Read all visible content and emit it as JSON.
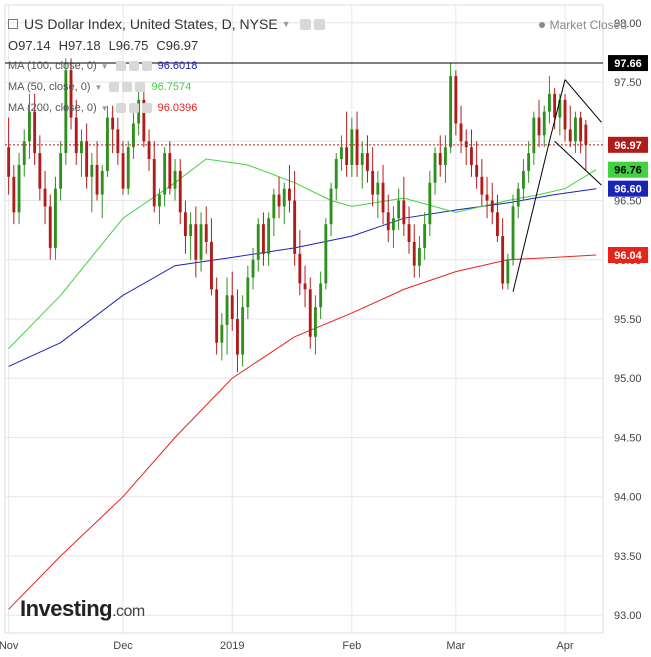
{
  "header": {
    "title": "US Dollar Index, United States, D, NYSE",
    "ohlc": {
      "open": "O97.14",
      "high": "H97.18",
      "low": "L96.75",
      "close": "C96.97"
    },
    "market_status": "Market Closed",
    "ma_lines": [
      {
        "label": "MA (100, close, 0)",
        "value": "96.6018",
        "color": "#1a23b8"
      },
      {
        "label": "MA (50, close, 0)",
        "value": "96.7574",
        "color": "#3fd33f"
      },
      {
        "label": "MA (200, close, 0)",
        "value": "96.0396",
        "color": "#e8231c"
      }
    ]
  },
  "logo": {
    "brand": "Investing",
    "domain": ".com"
  },
  "colors": {
    "up": "#2f8f1f",
    "down": "#b31b1b",
    "ma100": "#1a23b8",
    "ma50": "#3fd33f",
    "ma200": "#e8231c",
    "grid": "#e6e6e6"
  },
  "chart_data": {
    "type": "candlestick",
    "title": "US Dollar Index, United States, D, NYSE",
    "ylim": [
      92.85,
      98.15
    ],
    "y_ticks": [
      "93.00",
      "93.50",
      "94.00",
      "94.50",
      "95.00",
      "95.50",
      "96.00",
      "96.50",
      "97.00",
      "97.50",
      "98.00"
    ],
    "x_ticks": [
      {
        "label": "Nov",
        "x": 0
      },
      {
        "label": "Dec",
        "x": 22
      },
      {
        "label": "2019",
        "x": 43
      },
      {
        "label": "Feb",
        "x": 66
      },
      {
        "label": "Mar",
        "x": 86
      },
      {
        "label": "Apr",
        "x": 107
      }
    ],
    "candles": [
      [
        96.95,
        97.2,
        96.55,
        96.7
      ],
      [
        96.7,
        96.8,
        96.3,
        96.4
      ],
      [
        96.4,
        96.9,
        96.3,
        96.8
      ],
      [
        96.8,
        97.1,
        96.7,
        97.0
      ],
      [
        97.0,
        97.4,
        96.85,
        97.25
      ],
      [
        97.25,
        97.4,
        96.8,
        96.9
      ],
      [
        96.9,
        97.05,
        96.5,
        96.6
      ],
      [
        96.6,
        96.75,
        96.3,
        96.45
      ],
      [
        96.45,
        96.55,
        96.0,
        96.1
      ],
      [
        96.1,
        96.7,
        96.0,
        96.6
      ],
      [
        96.6,
        97.0,
        96.5,
        96.9
      ],
      [
        96.9,
        97.7,
        96.8,
        97.6
      ],
      [
        97.6,
        97.7,
        97.1,
        97.2
      ],
      [
        97.2,
        97.35,
        96.8,
        96.9
      ],
      [
        96.9,
        97.1,
        96.7,
        97.0
      ],
      [
        97.0,
        97.15,
        96.6,
        96.7
      ],
      [
        96.7,
        96.9,
        96.4,
        96.8
      ],
      [
        96.8,
        97.0,
        96.5,
        96.55
      ],
      [
        96.55,
        96.8,
        96.35,
        96.75
      ],
      [
        96.75,
        97.3,
        96.7,
        97.2
      ],
      [
        97.2,
        97.3,
        96.9,
        97.1
      ],
      [
        97.1,
        97.2,
        96.8,
        96.9
      ],
      [
        96.9,
        97.0,
        96.55,
        96.6
      ],
      [
        96.6,
        97.0,
        96.55,
        96.95
      ],
      [
        96.95,
        97.25,
        96.85,
        97.15
      ],
      [
        97.15,
        97.45,
        97.05,
        97.35
      ],
      [
        97.35,
        97.45,
        96.95,
        97.0
      ],
      [
        97.0,
        97.1,
        96.75,
        96.85
      ],
      [
        96.85,
        97.0,
        96.4,
        96.45
      ],
      [
        96.45,
        96.6,
        96.3,
        96.55
      ],
      [
        96.55,
        96.95,
        96.45,
        96.9
      ],
      [
        96.9,
        97.0,
        96.55,
        96.6
      ],
      [
        96.6,
        96.85,
        96.5,
        96.75
      ],
      [
        96.75,
        96.85,
        96.3,
        96.4
      ],
      [
        96.4,
        96.5,
        96.05,
        96.2
      ],
      [
        96.2,
        96.4,
        96.0,
        96.3
      ],
      [
        96.3,
        96.45,
        95.85,
        96.0
      ],
      [
        96.0,
        96.4,
        95.9,
        96.3
      ],
      [
        96.3,
        96.45,
        96.05,
        96.15
      ],
      [
        96.15,
        96.35,
        95.7,
        95.75
      ],
      [
        95.75,
        95.85,
        95.2,
        95.3
      ],
      [
        95.3,
        95.55,
        95.15,
        95.45
      ],
      [
        95.45,
        95.85,
        95.2,
        95.7
      ],
      [
        95.7,
        95.9,
        95.4,
        95.5
      ],
      [
        95.5,
        95.75,
        95.05,
        95.2
      ],
      [
        95.2,
        95.7,
        95.1,
        95.6
      ],
      [
        95.6,
        95.95,
        95.5,
        95.85
      ],
      [
        95.85,
        96.1,
        95.75,
        96.0
      ],
      [
        96.0,
        96.35,
        95.9,
        96.3
      ],
      [
        96.3,
        96.4,
        95.95,
        96.05
      ],
      [
        96.05,
        96.4,
        95.95,
        96.35
      ],
      [
        96.35,
        96.6,
        96.2,
        96.55
      ],
      [
        96.55,
        96.7,
        96.35,
        96.45
      ],
      [
        96.45,
        96.65,
        96.3,
        96.6
      ],
      [
        96.6,
        96.8,
        96.4,
        96.5
      ],
      [
        96.5,
        96.75,
        95.95,
        96.05
      ],
      [
        96.05,
        96.25,
        95.7,
        95.8
      ],
      [
        95.8,
        95.95,
        95.6,
        95.75
      ],
      [
        95.75,
        95.85,
        95.25,
        95.35
      ],
      [
        95.35,
        95.7,
        95.2,
        95.6
      ],
      [
        95.6,
        95.9,
        95.5,
        95.8
      ],
      [
        95.8,
        96.35,
        95.75,
        96.3
      ],
      [
        96.3,
        96.65,
        96.2,
        96.6
      ],
      [
        96.6,
        96.9,
        96.5,
        96.85
      ],
      [
        96.85,
        97.05,
        96.75,
        96.95
      ],
      [
        96.95,
        97.25,
        96.7,
        96.8
      ],
      [
        96.8,
        97.2,
        96.7,
        97.1
      ],
      [
        97.1,
        97.25,
        96.7,
        96.8
      ],
      [
        96.8,
        97.0,
        96.6,
        96.9
      ],
      [
        96.9,
        97.05,
        96.65,
        96.75
      ],
      [
        96.75,
        96.95,
        96.45,
        96.55
      ],
      [
        96.55,
        96.75,
        96.35,
        96.65
      ],
      [
        96.65,
        96.8,
        96.3,
        96.4
      ],
      [
        96.4,
        96.55,
        96.15,
        96.25
      ],
      [
        96.25,
        96.45,
        96.1,
        96.35
      ],
      [
        96.35,
        96.6,
        96.25,
        96.5
      ],
      [
        96.5,
        96.7,
        96.2,
        96.3
      ],
      [
        96.3,
        96.45,
        96.05,
        96.15
      ],
      [
        96.15,
        96.3,
        95.85,
        95.95
      ],
      [
        95.95,
        96.2,
        95.85,
        96.1
      ],
      [
        96.1,
        96.4,
        96.0,
        96.3
      ],
      [
        96.3,
        96.75,
        96.2,
        96.65
      ],
      [
        96.65,
        96.95,
        96.55,
        96.9
      ],
      [
        96.9,
        97.05,
        96.7,
        96.8
      ],
      [
        96.8,
        97.05,
        96.65,
        96.95
      ],
      [
        96.95,
        97.66,
        96.9,
        97.55
      ],
      [
        97.55,
        97.6,
        97.05,
        97.15
      ],
      [
        97.15,
        97.3,
        96.9,
        97.0
      ],
      [
        97.0,
        97.1,
        96.8,
        96.95
      ],
      [
        96.95,
        97.1,
        96.7,
        96.8
      ],
      [
        96.8,
        97.0,
        96.6,
        96.7
      ],
      [
        96.7,
        96.85,
        96.45,
        96.55
      ],
      [
        96.55,
        96.7,
        96.35,
        96.5
      ],
      [
        96.5,
        96.65,
        96.3,
        96.4
      ],
      [
        96.4,
        96.55,
        96.15,
        96.2
      ],
      [
        96.2,
        96.35,
        95.75,
        95.8
      ],
      [
        95.8,
        96.05,
        95.75,
        96.0
      ],
      [
        96.0,
        96.55,
        95.95,
        96.45
      ],
      [
        96.45,
        96.65,
        96.35,
        96.6
      ],
      [
        96.6,
        96.85,
        96.5,
        96.75
      ],
      [
        96.75,
        97.0,
        96.65,
        96.9
      ],
      [
        96.9,
        97.25,
        96.8,
        97.2
      ],
      [
        97.2,
        97.35,
        96.95,
        97.05
      ],
      [
        97.05,
        97.3,
        96.95,
        97.25
      ],
      [
        97.25,
        97.55,
        97.15,
        97.4
      ],
      [
        97.4,
        97.45,
        97.1,
        97.2
      ],
      [
        97.2,
        97.4,
        97.05,
        97.35
      ],
      [
        97.35,
        97.4,
        97.0,
        97.1
      ],
      [
        97.1,
        97.3,
        96.95,
        97.0
      ],
      [
        97.0,
        97.25,
        96.9,
        97.2
      ],
      [
        97.2,
        97.25,
        96.9,
        97.0
      ],
      [
        97.14,
        97.18,
        96.75,
        96.97
      ]
    ],
    "series": [
      {
        "name": "MA (100, close, 0)",
        "color": "#1a23b8",
        "points": [
          [
            0,
            95.1
          ],
          [
            10,
            95.3
          ],
          [
            22,
            95.7
          ],
          [
            32,
            95.95
          ],
          [
            43,
            96.02
          ],
          [
            55,
            96.1
          ],
          [
            66,
            96.2
          ],
          [
            76,
            96.35
          ],
          [
            86,
            96.42
          ],
          [
            96,
            96.48
          ],
          [
            105,
            96.55
          ],
          [
            113,
            96.6
          ]
        ]
      },
      {
        "name": "MA (50, close, 0)",
        "color": "#3fd33f",
        "points": [
          [
            0,
            95.25
          ],
          [
            10,
            95.7
          ],
          [
            22,
            96.35
          ],
          [
            32,
            96.65
          ],
          [
            38,
            96.85
          ],
          [
            46,
            96.8
          ],
          [
            55,
            96.65
          ],
          [
            62,
            96.5
          ],
          [
            66,
            96.45
          ],
          [
            76,
            96.52
          ],
          [
            86,
            96.4
          ],
          [
            96,
            96.5
          ],
          [
            102,
            96.55
          ],
          [
            107,
            96.6
          ],
          [
            113,
            96.76
          ]
        ]
      },
      {
        "name": "MA (200, close, 0)",
        "color": "#e8231c",
        "points": [
          [
            0,
            93.05
          ],
          [
            10,
            93.5
          ],
          [
            22,
            94.0
          ],
          [
            32,
            94.5
          ],
          [
            43,
            95.0
          ],
          [
            55,
            95.35
          ],
          [
            66,
            95.55
          ],
          [
            76,
            95.75
          ],
          [
            86,
            95.9
          ],
          [
            96,
            96.0
          ],
          [
            105,
            96.02
          ],
          [
            113,
            96.04
          ]
        ]
      }
    ],
    "annotations": [
      {
        "type": "hline",
        "y": 97.66,
        "style": "solid",
        "color": "#000000"
      },
      {
        "type": "hline",
        "y": 96.97,
        "style": "dotted",
        "color": "#b31b1b"
      },
      {
        "type": "segment",
        "from": [
          97,
          95.73
        ],
        "to": [
          104,
          97.0
        ]
      },
      {
        "type": "segment",
        "from": [
          104,
          97.0
        ],
        "to": [
          107,
          97.52
        ]
      },
      {
        "type": "segment",
        "from": [
          107,
          97.52
        ],
        "to": [
          114,
          97.16
        ]
      },
      {
        "type": "segment",
        "from": [
          105,
          97.0
        ],
        "to": [
          114,
          96.63
        ]
      }
    ],
    "price_labels": [
      {
        "label": "97.66",
        "y": 97.66,
        "bg": "#000000",
        "fg": "#ffffff"
      },
      {
        "label": "96.97",
        "y": 96.97,
        "bg": "#b31b1b",
        "fg": "#ffffff"
      },
      {
        "label": "96.76",
        "y": 96.76,
        "bg": "#3fd33f",
        "fg": "#000000"
      },
      {
        "label": "96.60",
        "y": 96.6,
        "bg": "#1a23b8",
        "fg": "#ffffff"
      },
      {
        "label": "96.04",
        "y": 96.04,
        "bg": "#e8231c",
        "fg": "#ffffff"
      }
    ]
  }
}
